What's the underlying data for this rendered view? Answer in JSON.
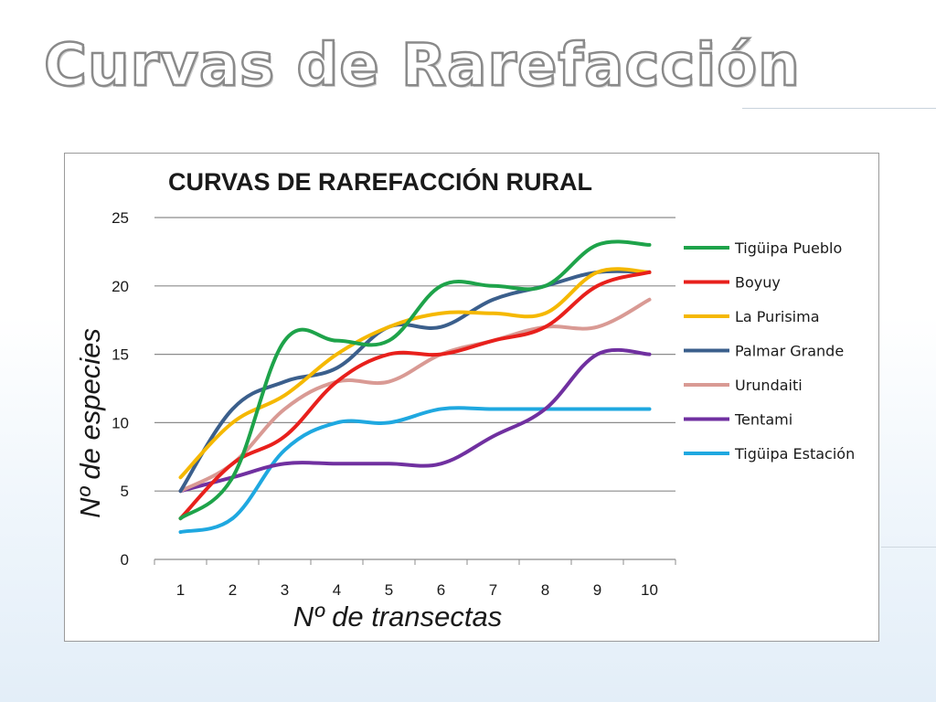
{
  "slide": {
    "title": "Curvas de Rarefacción"
  },
  "chart_data": {
    "type": "line",
    "title": "CURVAS DE RAREFACCIÓN RURAL",
    "xlabel": "Nº de transectas",
    "ylabel": "Nº de especies",
    "x": [
      1,
      2,
      3,
      4,
      5,
      6,
      7,
      8,
      9,
      10
    ],
    "ylim": [
      0,
      25
    ],
    "yticks": [
      0,
      5,
      10,
      15,
      20,
      25
    ],
    "grid": "horizontal",
    "legend": "right",
    "series": [
      {
        "name": "Tigüipa Pueblo",
        "color": "#1ea34a",
        "values": [
          3,
          6,
          16,
          16,
          16,
          20,
          20,
          20,
          23,
          23
        ]
      },
      {
        "name": "Boyuy",
        "color": "#e8201c",
        "values": [
          3,
          7,
          9,
          13,
          15,
          15,
          16,
          17,
          20,
          21
        ]
      },
      {
        "name": "La Purisima",
        "color": "#f5b800",
        "values": [
          6,
          10,
          12,
          15,
          17,
          18,
          18,
          18,
          21,
          21
        ]
      },
      {
        "name": "Palmar Grande",
        "color": "#3b5f8c",
        "values": [
          5,
          11,
          13,
          14,
          17,
          17,
          19,
          20,
          21,
          21
        ]
      },
      {
        "name": "Urundaiti",
        "color": "#d99a94",
        "values": [
          5,
          7,
          11,
          13,
          13,
          15,
          16,
          17,
          17,
          19
        ]
      },
      {
        "name": "Tentami",
        "color": "#7030a0",
        "values": [
          5,
          6,
          7,
          7,
          7,
          7,
          9,
          11,
          15,
          15
        ]
      },
      {
        "name": "Tigüipa Estación",
        "color": "#1fa8e0",
        "values": [
          2,
          3,
          8,
          10,
          10,
          11,
          11,
          11,
          11,
          11
        ]
      }
    ]
  }
}
